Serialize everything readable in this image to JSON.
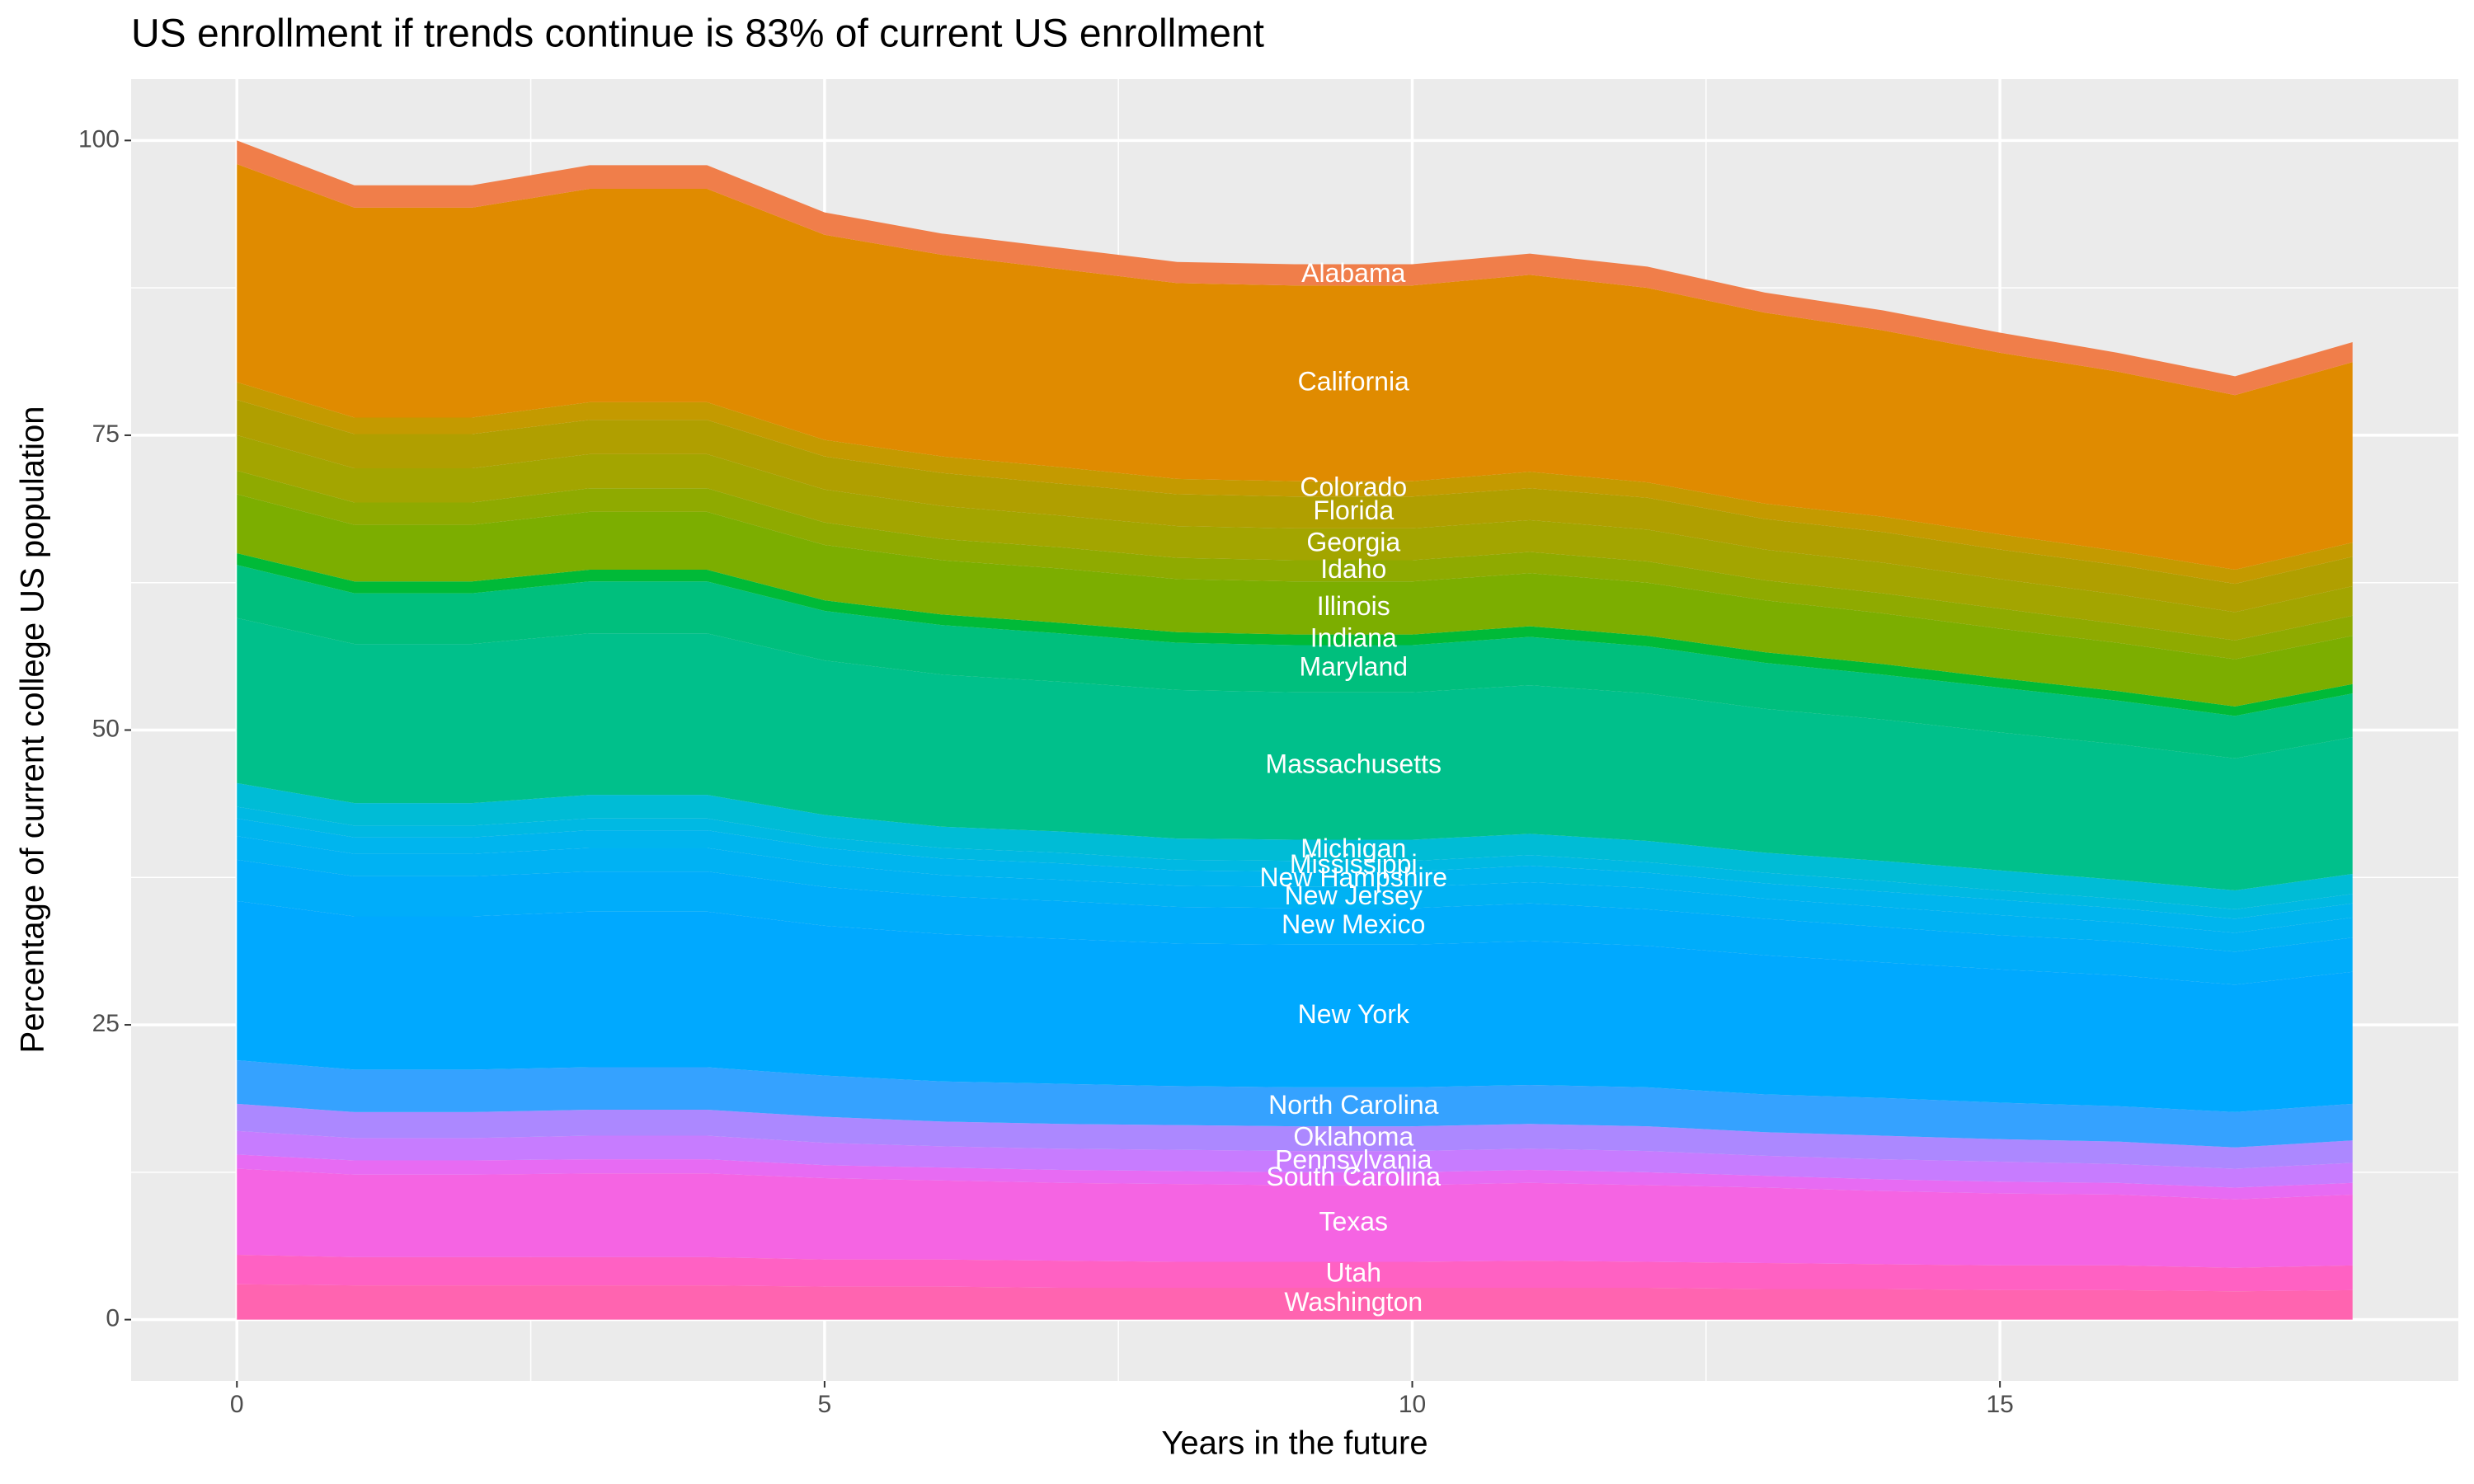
{
  "chart_data": {
    "type": "area",
    "stacked": true,
    "grid": true,
    "title": "US enrollment if trends continue is 83% of current US enrollment",
    "x_label": "Years in the future",
    "y_label": "Percentage of current college US population",
    "x": [
      0,
      1,
      2,
      3,
      4,
      5,
      6,
      7,
      8,
      9,
      10,
      11,
      12,
      13,
      14,
      15,
      16,
      17,
      18
    ],
    "xlim": [
      -0.9,
      18.9
    ],
    "ylim": [
      -5.2,
      105.2
    ],
    "xticks": [
      0,
      5,
      10,
      15
    ],
    "yticks": [
      0,
      25,
      50,
      75,
      100
    ],
    "series": [
      {
        "name": "Washington",
        "color": "#FF64B0",
        "values": [
          3,
          2.9,
          2.9,
          2.9,
          2.9,
          2.8,
          2.8,
          2.7,
          2.7,
          2.7,
          2.7,
          2.7,
          2.7,
          2.6,
          2.6,
          2.5,
          2.5,
          2.4,
          2.5
        ]
      },
      {
        "name": "Utah",
        "color": "#FF61C3",
        "values": [
          2.5,
          2.4,
          2.4,
          2.4,
          2.4,
          2.3,
          2.3,
          2.3,
          2.2,
          2.2,
          2.2,
          2.3,
          2.2,
          2.2,
          2.1,
          2.1,
          2.1,
          2,
          2.1
        ]
      },
      {
        "name": "Texas",
        "color": "#F564E3",
        "values": [
          7.3,
          7,
          7,
          7.1,
          7.1,
          6.9,
          6.7,
          6.6,
          6.6,
          6.5,
          6.5,
          6.6,
          6.5,
          6.4,
          6.2,
          6.1,
          6,
          5.8,
          6
        ]
      },
      {
        "name": "South Carolina",
        "color": "#E76BF3",
        "values": [
          1.2,
          1.2,
          1.2,
          1.2,
          1.2,
          1.1,
          1.1,
          1.1,
          1.1,
          1.1,
          1.1,
          1.1,
          1.1,
          1,
          1,
          1,
          1,
          1,
          1
        ]
      },
      {
        "name": "Pennsylvania",
        "color": "#C77CFF",
        "values": [
          2,
          1.9,
          1.9,
          2,
          2,
          1.9,
          1.8,
          1.8,
          1.8,
          1.8,
          1.8,
          1.8,
          1.8,
          1.7,
          1.7,
          1.7,
          1.6,
          1.6,
          1.7
        ]
      },
      {
        "name": "Oklahoma",
        "color": "#AC88FF",
        "values": [
          2.3,
          2.2,
          2.2,
          2.2,
          2.2,
          2.2,
          2.1,
          2.1,
          2.1,
          2.1,
          2.1,
          2.1,
          2.1,
          2,
          2,
          1.9,
          1.9,
          1.8,
          1.9
        ]
      },
      {
        "name": "North Carolina",
        "color": "#35A2FF",
        "values": [
          3.7,
          3.6,
          3.6,
          3.6,
          3.6,
          3.5,
          3.4,
          3.4,
          3.3,
          3.3,
          3.3,
          3.3,
          3.3,
          3.2,
          3.2,
          3.1,
          3,
          3,
          3.1
        ]
      },
      {
        "name": "New York",
        "color": "#00A9FF",
        "values": [
          13.5,
          13,
          13,
          13.2,
          13.2,
          12.7,
          12.5,
          12.3,
          12.1,
          12.1,
          12.1,
          12.2,
          12,
          11.8,
          11.5,
          11.3,
          11.1,
          10.8,
          11.2
        ]
      },
      {
        "name": "New Mexico",
        "color": "#00ADFA",
        "values": [
          3.5,
          3.4,
          3.4,
          3.4,
          3.4,
          3.3,
          3.2,
          3.2,
          3.1,
          3.1,
          3.1,
          3.2,
          3.1,
          3.1,
          3,
          2.9,
          2.9,
          2.8,
          2.9
        ]
      },
      {
        "name": "New Jersey",
        "color": "#00B2F3",
        "values": [
          2,
          1.9,
          1.9,
          2,
          2,
          1.9,
          1.8,
          1.8,
          1.8,
          1.8,
          1.8,
          1.8,
          1.8,
          1.7,
          1.7,
          1.7,
          1.6,
          1.6,
          1.7
        ]
      },
      {
        "name": "New Hampshire",
        "color": "#00B5EE",
        "values": [
          1.5,
          1.4,
          1.4,
          1.5,
          1.5,
          1.4,
          1.4,
          1.4,
          1.3,
          1.3,
          1.3,
          1.4,
          1.3,
          1.3,
          1.3,
          1.3,
          1.2,
          1.2,
          1.2
        ]
      },
      {
        "name": "Mississippi",
        "color": "#00B9E3",
        "values": [
          1,
          1,
          1,
          1,
          1,
          0.9,
          0.9,
          0.9,
          0.9,
          0.9,
          0.9,
          0.9,
          0.9,
          0.9,
          0.9,
          0.8,
          0.8,
          0.8,
          0.8
        ]
      },
      {
        "name": "Michigan",
        "color": "#00BCD6",
        "values": [
          2,
          1.9,
          1.9,
          2,
          2,
          1.9,
          1.8,
          1.8,
          1.8,
          1.8,
          1.8,
          1.8,
          1.8,
          1.7,
          1.7,
          1.7,
          1.6,
          1.6,
          1.7
        ]
      },
      {
        "name": "Massachusetts",
        "color": "#00C08B",
        "values": [
          14,
          13.5,
          13.5,
          13.7,
          13.7,
          13.1,
          12.9,
          12.7,
          12.6,
          12.5,
          12.5,
          12.6,
          12.5,
          12.2,
          12,
          11.7,
          11.5,
          11.2,
          11.6
        ]
      },
      {
        "name": "Maryland",
        "color": "#00BF7D",
        "values": [
          4.5,
          4.3,
          4.3,
          4.4,
          4.4,
          4.2,
          4.2,
          4.1,
          4,
          4,
          4,
          4.1,
          4,
          3.9,
          3.8,
          3.8,
          3.7,
          3.6,
          3.7
        ]
      },
      {
        "name": "Indiana",
        "color": "#00BA38",
        "values": [
          1,
          1,
          1,
          1,
          1,
          0.9,
          0.9,
          0.9,
          0.9,
          0.9,
          0.9,
          0.9,
          0.9,
          0.9,
          0.9,
          0.8,
          0.8,
          0.8,
          0.8
        ]
      },
      {
        "name": "Illinois",
        "color": "#7CAE00",
        "values": [
          5,
          4.8,
          4.8,
          4.9,
          4.9,
          4.7,
          4.6,
          4.6,
          4.5,
          4.5,
          4.5,
          4.5,
          4.5,
          4.4,
          4.3,
          4.2,
          4.1,
          4,
          4.1
        ]
      },
      {
        "name": "Idaho",
        "color": "#8FAA00",
        "values": [
          2,
          1.9,
          1.9,
          2,
          2,
          1.9,
          1.8,
          1.8,
          1.8,
          1.8,
          1.8,
          1.8,
          1.8,
          1.7,
          1.7,
          1.7,
          1.6,
          1.6,
          1.7
        ]
      },
      {
        "name": "Georgia",
        "color": "#A3A500",
        "values": [
          3,
          2.9,
          2.9,
          2.9,
          2.9,
          2.8,
          2.8,
          2.7,
          2.7,
          2.7,
          2.7,
          2.7,
          2.7,
          2.6,
          2.6,
          2.5,
          2.5,
          2.4,
          2.5
        ]
      },
      {
        "name": "Florida",
        "color": "#B09F00",
        "values": [
          3,
          2.9,
          2.9,
          2.9,
          2.9,
          2.8,
          2.8,
          2.7,
          2.7,
          2.7,
          2.7,
          2.7,
          2.7,
          2.6,
          2.6,
          2.5,
          2.5,
          2.4,
          2.5
        ]
      },
      {
        "name": "Colorado",
        "color": "#C49A00",
        "values": [
          1.5,
          1.4,
          1.4,
          1.5,
          1.5,
          1.4,
          1.4,
          1.4,
          1.3,
          1.3,
          1.3,
          1.4,
          1.3,
          1.3,
          1.3,
          1.3,
          1.2,
          1.2,
          1.2
        ]
      },
      {
        "name": "California",
        "color": "#E08B00",
        "values": [
          18.5,
          17.8,
          17.8,
          18.1,
          18.1,
          17.4,
          17.1,
          16.8,
          16.6,
          16.6,
          16.6,
          16.7,
          16.5,
          16.2,
          15.8,
          15.4,
          15.2,
          14.8,
          15.3
        ]
      },
      {
        "name": "Alabama",
        "color": "#F07E4A",
        "values": [
          2,
          1.9,
          1.9,
          2,
          2,
          1.9,
          1.8,
          1.8,
          1.8,
          1.8,
          1.8,
          1.8,
          1.8,
          1.7,
          1.7,
          1.7,
          1.6,
          1.6,
          1.7
        ]
      }
    ]
  }
}
